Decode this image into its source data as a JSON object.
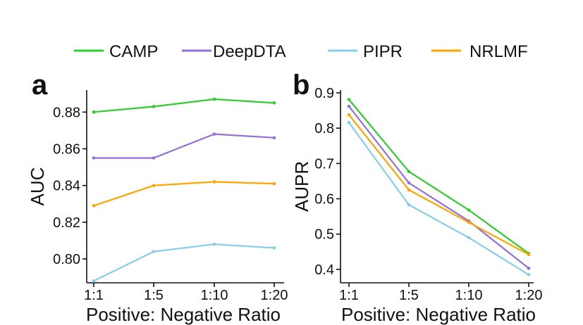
{
  "legend": {
    "entries": [
      {
        "name": "CAMP",
        "color": "#2ecc2e"
      },
      {
        "name": "DeepDTA",
        "color": "#9370db"
      },
      {
        "name": "PIPR",
        "color": "#87ceeb"
      },
      {
        "name": "NRLMF",
        "color": "#ffa500"
      }
    ]
  },
  "chart_data": [
    {
      "type": "line",
      "panel": "a",
      "categories": [
        "1:1",
        "1:5",
        "1:10",
        "1:20"
      ],
      "xlabel": "Positive: Negative Ratio",
      "ylabel": "AUC",
      "ylim": [
        0.787,
        0.892
      ],
      "yticks": [
        "0.80",
        "0.82",
        "0.84",
        "0.86",
        "0.88"
      ],
      "ytick_values": [
        0.8,
        0.82,
        0.84,
        0.86,
        0.88
      ],
      "series": [
        {
          "name": "CAMP",
          "color": "#2ecc2e",
          "values": [
            0.88,
            0.883,
            0.887,
            0.885
          ]
        },
        {
          "name": "DeepDTA",
          "color": "#9370db",
          "values": [
            0.855,
            0.855,
            0.868,
            0.866
          ]
        },
        {
          "name": "NRLMF",
          "color": "#ffa500",
          "values": [
            0.829,
            0.84,
            0.842,
            0.841
          ]
        },
        {
          "name": "PIPR",
          "color": "#87ceeb",
          "values": [
            0.788,
            0.804,
            0.808,
            0.806
          ]
        }
      ]
    },
    {
      "type": "line",
      "panel": "b",
      "categories": [
        "1:1",
        "1:5",
        "1:10",
        "1:20"
      ],
      "xlabel": "Positive: Negative Ratio",
      "ylabel": "AUPR",
      "ylim": [
        0.362,
        0.908
      ],
      "yticks": [
        "0.4",
        "0.5",
        "0.6",
        "0.7",
        "0.8",
        "0.9"
      ],
      "ytick_values": [
        0.4,
        0.5,
        0.6,
        0.7,
        0.8,
        0.9
      ],
      "series": [
        {
          "name": "CAMP",
          "color": "#2ecc2e",
          "values": [
            0.881,
            0.677,
            0.568,
            0.445
          ]
        },
        {
          "name": "DeepDTA",
          "color": "#9370db",
          "values": [
            0.862,
            0.645,
            0.537,
            0.403
          ]
        },
        {
          "name": "NRLMF",
          "color": "#ffa500",
          "values": [
            0.838,
            0.625,
            0.533,
            0.442
          ]
        },
        {
          "name": "PIPR",
          "color": "#87ceeb",
          "values": [
            0.816,
            0.583,
            0.49,
            0.385
          ]
        }
      ]
    }
  ]
}
